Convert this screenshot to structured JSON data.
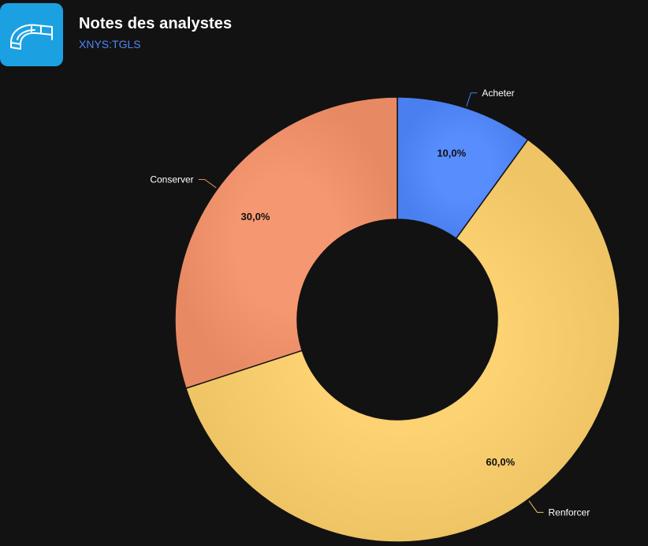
{
  "header": {
    "title": "Notes des analystes",
    "ticker": "XNYS:TGLS"
  },
  "logo": {
    "icon": "glass-curve-icon",
    "background": "#1ba1e2"
  },
  "chart_data": {
    "type": "pie",
    "variant": "donut",
    "title": "Notes des analystes",
    "slices": [
      {
        "name": "Acheter",
        "value": 10,
        "label": "10,0%",
        "color": "#4a7ff0"
      },
      {
        "name": "Renforcer",
        "value": 60,
        "label": "60,0%",
        "color": "#eec464"
      },
      {
        "name": "Conserver",
        "value": 30,
        "label": "30,0%",
        "color": "#e78a63"
      }
    ],
    "start_angle_deg": 0,
    "direction": "clockwise",
    "legend": "none",
    "grid": false
  }
}
